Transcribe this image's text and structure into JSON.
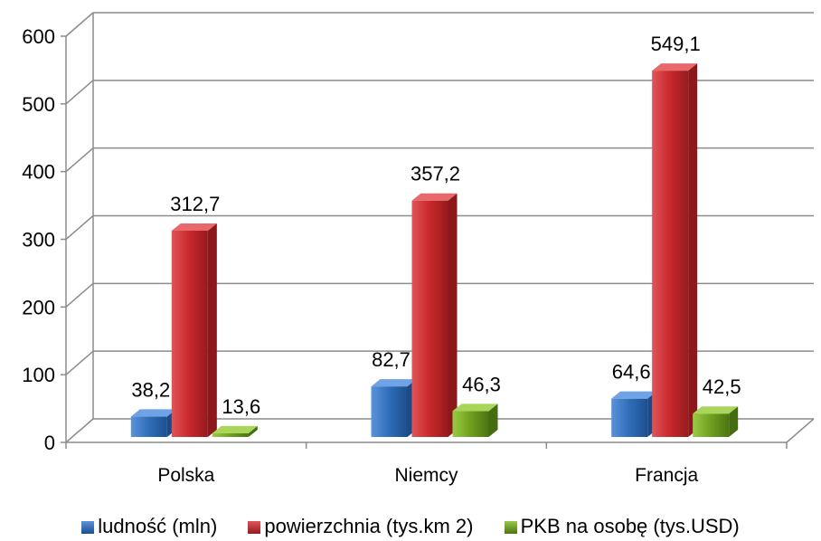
{
  "chart_data": {
    "type": "bar",
    "categories": [
      "Polska",
      "Niemcy",
      "Francja"
    ],
    "series": [
      {
        "name": "ludność (mln)",
        "values": [
          38.2,
          82.7,
          64.6
        ],
        "labels": [
          "38,2",
          "82,7",
          "64,6"
        ],
        "color": "#2f6db8"
      },
      {
        "name": "powierzchnia (tys.km 2)",
        "values": [
          312.7,
          357.2,
          549.1
        ],
        "labels": [
          "312,7",
          "357,2",
          "549,1"
        ],
        "color": "#c8282b"
      },
      {
        "name": "PKB na osobę (tys.USD)",
        "values": [
          13.6,
          46.3,
          42.5
        ],
        "labels": [
          "13,6",
          "46,3",
          "42,5"
        ],
        "color": "#6ea01e"
      }
    ],
    "yticks": [
      "0",
      "100",
      "200",
      "300",
      "400",
      "500",
      "600"
    ],
    "ylim": [
      0,
      600
    ],
    "grid": true,
    "legend_position": "bottom",
    "title": "",
    "xlabel": "",
    "ylabel": ""
  }
}
